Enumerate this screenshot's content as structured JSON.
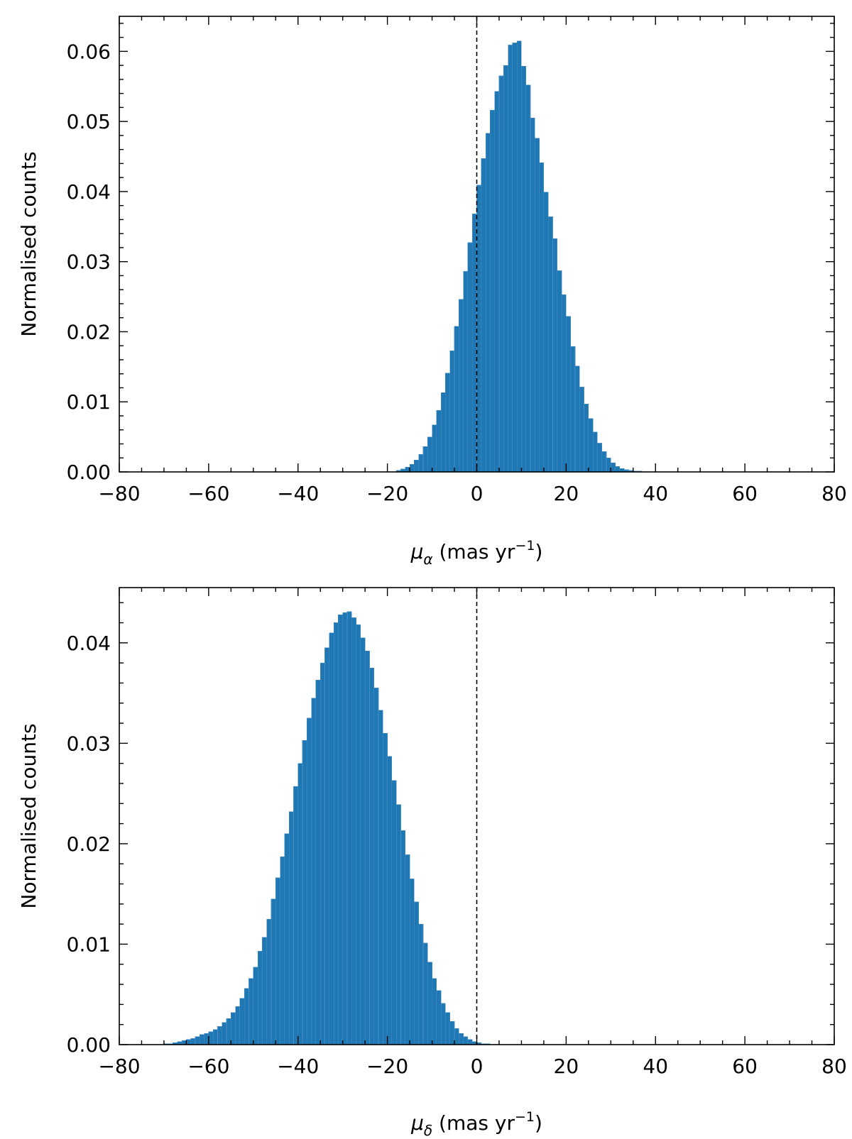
{
  "colors": {
    "bar": "#1f77b4",
    "bar_edge": "#4a8fc4",
    "axes": "#000000"
  },
  "chart_data": [
    {
      "type": "bar",
      "xlabel": "μ",
      "xlabel_sub": "α",
      "xlabel_unit_pre": " (mas yr",
      "xlabel_sup": "−1",
      "xlabel_unit_post": ")",
      "ylabel": "Normalised counts",
      "xlim": [
        -80,
        80
      ],
      "ylim": [
        0,
        0.065
      ],
      "xticks": [
        -80,
        -60,
        -40,
        -20,
        0,
        20,
        40,
        60,
        80
      ],
      "xtick_labels": [
        "−80",
        "−60",
        "−40",
        "−20",
        "0",
        "20",
        "40",
        "60",
        "80"
      ],
      "yticks": [
        0,
        0.01,
        0.02,
        0.03,
        0.04,
        0.05,
        0.06
      ],
      "ytick_labels": [
        "0.00",
        "0.01",
        "0.02",
        "0.03",
        "0.04",
        "0.05",
        "0.06"
      ],
      "vline_x": 0,
      "bin_width": 1,
      "bin_start": -18,
      "values": [
        0.0002,
        0.0004,
        0.0007,
        0.0011,
        0.0017,
        0.0025,
        0.0036,
        0.005,
        0.0067,
        0.0088,
        0.0113,
        0.0141,
        0.0173,
        0.0208,
        0.0246,
        0.0286,
        0.0327,
        0.0368,
        0.0409,
        0.0447,
        0.0483,
        0.0516,
        0.0543,
        0.0565,
        0.058,
        0.0609,
        0.0612,
        0.0615,
        0.0579,
        0.0552,
        0.0505,
        0.0476,
        0.0441,
        0.0399,
        0.0364,
        0.0333,
        0.0287,
        0.0253,
        0.0222,
        0.0179,
        0.0151,
        0.0121,
        0.0097,
        0.0076,
        0.0057,
        0.0041,
        0.0029,
        0.002,
        0.0013,
        0.0008,
        0.0005,
        0.0003,
        0.0002,
        0.0001,
        0.0001
      ]
    },
    {
      "type": "bar",
      "xlabel": "μ",
      "xlabel_sub": "δ",
      "xlabel_unit_pre": " (mas yr",
      "xlabel_sup": "−1",
      "xlabel_unit_post": ")",
      "ylabel": "Normalised counts",
      "xlim": [
        -80,
        80
      ],
      "ylim": [
        0,
        0.0455
      ],
      "xticks": [
        -80,
        -60,
        -40,
        -20,
        0,
        20,
        40,
        60,
        80
      ],
      "xtick_labels": [
        "−80",
        "−60",
        "−40",
        "−20",
        "0",
        "20",
        "40",
        "60",
        "80"
      ],
      "yticks": [
        0,
        0.01,
        0.02,
        0.03,
        0.04
      ],
      "ytick_labels": [
        "0.00",
        "0.01",
        "0.02",
        "0.03",
        "0.04"
      ],
      "vline_x": 0,
      "bin_width": 1,
      "bin_start": -70,
      "values": [
        0.0001,
        0.0001,
        0.0002,
        0.0003,
        0.0004,
        0.0005,
        0.0006,
        0.0008,
        0.001,
        0.0011,
        0.0013,
        0.0015,
        0.0018,
        0.0022,
        0.0026,
        0.0032,
        0.0038,
        0.0046,
        0.0056,
        0.0066,
        0.0077,
        0.0093,
        0.0107,
        0.0125,
        0.0145,
        0.0166,
        0.0187,
        0.021,
        0.0232,
        0.0257,
        0.028,
        0.0303,
        0.0325,
        0.0345,
        0.0363,
        0.038,
        0.0395,
        0.041,
        0.042,
        0.0428,
        0.043,
        0.0431,
        0.0425,
        0.0418,
        0.0405,
        0.0392,
        0.0375,
        0.0355,
        0.0333,
        0.031,
        0.0287,
        0.0263,
        0.0239,
        0.0213,
        0.0189,
        0.0165,
        0.0142,
        0.012,
        0.0101,
        0.0082,
        0.0066,
        0.0054,
        0.0041,
        0.0032,
        0.0023,
        0.0016,
        0.0011,
        0.0008,
        0.0005,
        0.0003,
        0.0002,
        0.0001,
        0.0001
      ]
    }
  ]
}
